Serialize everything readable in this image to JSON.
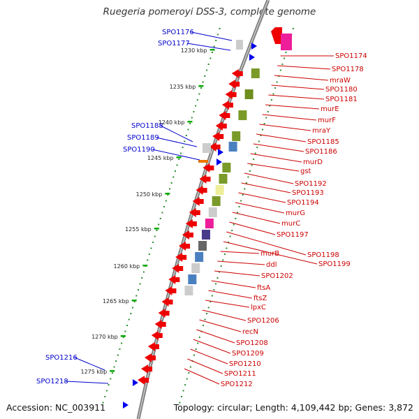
{
  "title": "Ruegeria pomeroyi DSS-3, complete genome",
  "footer": {
    "accession": "Accession: NC_003911",
    "topology": "Topology: circular; Length: 4,109,442 bp; Genes: 3,872"
  },
  "colors": {
    "forward_gene": "#0000ee",
    "reverse_gene": "#ee0000",
    "backbone": "#999999",
    "tick": "#009900",
    "label_forward": "#0000cc",
    "label_reverse": "#cc0000"
  },
  "kbp_ticks": [
    "1230 kbp",
    "1235 kbp",
    "1240 kbp",
    "1245 kbp",
    "1250 kbp",
    "1255 kbp",
    "1260 kbp",
    "1265 kbp",
    "1270 kbp",
    "1275 kbp"
  ],
  "forward_labels": [
    "SPO1176",
    "SPO1177",
    "SPO1188",
    "SPO1189",
    "SPO1190",
    "SPO1216",
    "SPO1218"
  ],
  "reverse_labels": [
    "SPO1174",
    "SPO1178",
    "mraW",
    "SPO1180",
    "SPO1181",
    "murE",
    "murF",
    "mraY",
    "SPO1185",
    "SPO1186",
    "murD",
    "gst",
    "SPO1192",
    "SPO1193",
    "SPO1194",
    "murG",
    "murC",
    "SPO1197",
    "SPO1198",
    "SPO1199",
    "murB",
    "ddl",
    "SPO1202",
    "ftsA",
    "ftsZ",
    "lpxC",
    "SPO1206",
    "recN",
    "SPO1208",
    "SPO1209",
    "SPO1210",
    "SPO1211",
    "SPO1212"
  ]
}
